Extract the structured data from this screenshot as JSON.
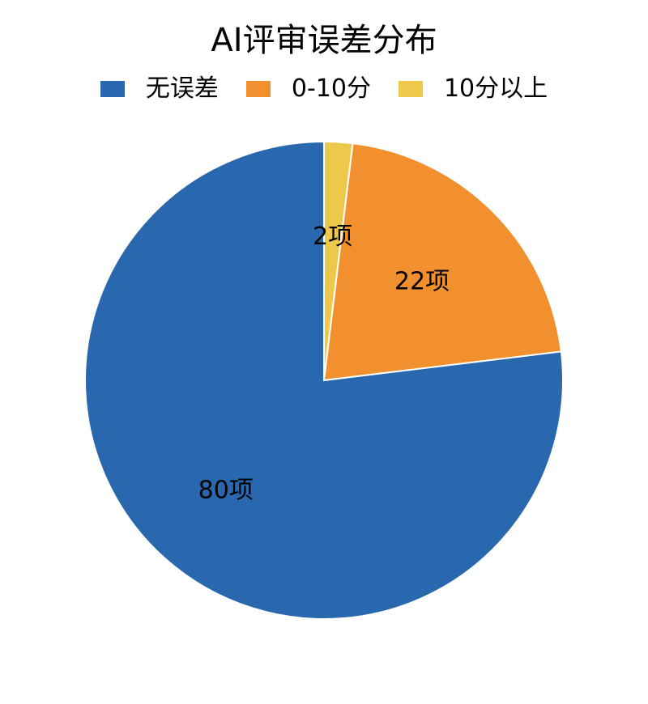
{
  "chart_data": {
    "type": "pie",
    "title": "AI评审误差分布",
    "legend_position": "top",
    "categories": [
      "无误差",
      "0-10分",
      "10分以上"
    ],
    "values": [
      80,
      22,
      2
    ],
    "data_labels": [
      "80项",
      "22项",
      "2项"
    ],
    "colors": [
      "#2968AE",
      "#F28F2E",
      "#EDC84A"
    ],
    "start_angle": "12-o'clock",
    "direction": "clockwise"
  }
}
